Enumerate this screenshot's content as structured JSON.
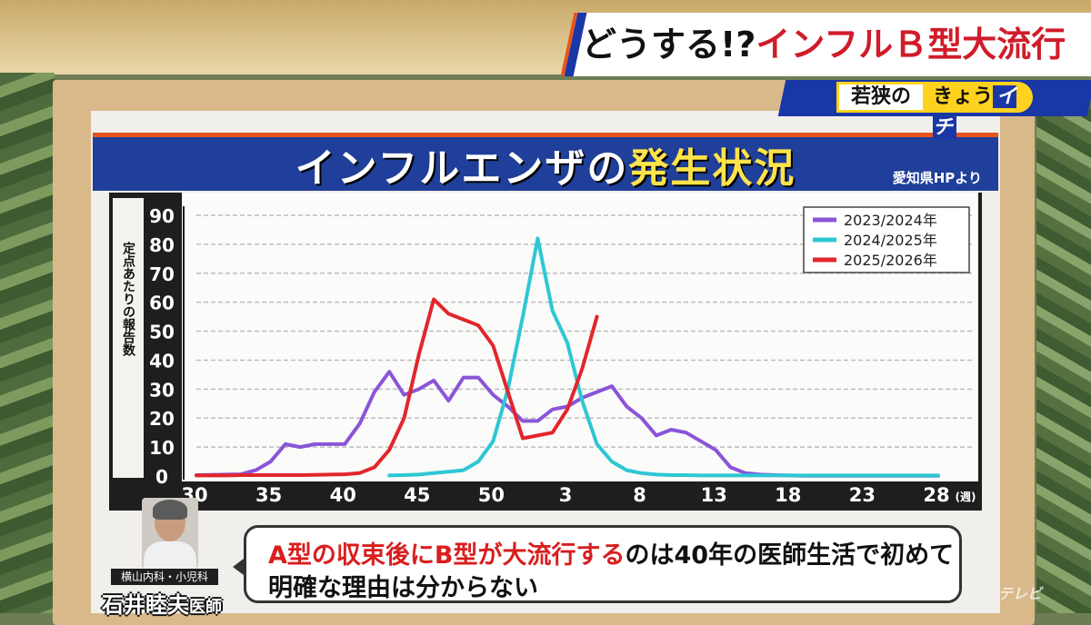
{
  "banner": {
    "title_main": "インフルエンザの",
    "title_highlight": "発生状況",
    "source": "愛知県HPより"
  },
  "topic": {
    "text_black": "どうする!?",
    "text_red": "インフルＢ型大流行"
  },
  "program": {
    "left": "若狭の",
    "right_a": "きょう",
    "right_b": "イチ"
  },
  "bubble": {
    "line1_red1": "A型の収束後に",
    "line1_red2": "B型が大流行する",
    "line1_rest": "のは40年の医師生活で初めて",
    "line2": "明確な理由は分からない"
  },
  "doctor": {
    "affiliation": "横山内科・小児科",
    "name": "石井睦夫",
    "suffix": "医師"
  },
  "watermark": "テレビ",
  "colors": {
    "s2023": "#8a55d8",
    "s2024": "#2ec7d3",
    "s2025": "#e2262b",
    "banner": "#1f3f9a",
    "accent": "#e8541c"
  },
  "chart_data": {
    "type": "line",
    "ylabel": "定点あたりの報告数",
    "xunit": "(週)",
    "ylim": [
      0,
      90
    ],
    "yticks": [
      0,
      10,
      20,
      30,
      40,
      50,
      60,
      70,
      80,
      90
    ],
    "weeks": [
      30,
      31,
      32,
      33,
      34,
      35,
      36,
      37,
      38,
      39,
      40,
      41,
      42,
      43,
      44,
      45,
      46,
      47,
      48,
      49,
      50,
      51,
      52,
      1,
      2,
      3,
      4,
      5,
      6,
      7,
      8,
      9,
      10,
      11,
      12,
      13,
      14,
      15,
      16,
      17,
      18,
      19,
      20,
      21,
      22,
      23,
      24,
      25,
      26,
      27,
      28
    ],
    "xtick_labels": [
      "30",
      "35",
      "40",
      "45",
      "50",
      "3",
      "8",
      "13",
      "18",
      "23",
      "28"
    ],
    "xtick_index": [
      0,
      5,
      10,
      15,
      20,
      25,
      30,
      35,
      40,
      45,
      50
    ],
    "legend_position": "top-right",
    "series": [
      {
        "name": "2023/2024年",
        "color": "#8a55d8",
        "values": [
          0.3,
          0.4,
          0.5,
          0.6,
          2,
          5,
          11,
          10,
          11,
          11,
          11,
          18,
          29,
          36,
          28,
          30,
          33,
          26,
          34,
          34,
          28,
          24,
          19,
          19,
          23,
          24,
          27,
          29,
          31,
          24,
          20,
          14,
          16,
          15,
          12,
          9,
          3,
          1,
          0.5,
          0.3,
          0.2,
          0.1,
          0.1,
          0.1,
          0.1,
          0.1,
          0.1,
          0.1,
          0.1,
          0.1,
          0.1
        ]
      },
      {
        "name": "2024/2025年",
        "color": "#2ec7d3",
        "values": [
          null,
          null,
          null,
          null,
          null,
          null,
          null,
          null,
          null,
          null,
          null,
          null,
          null,
          0.2,
          0.3,
          0.5,
          1,
          1.5,
          2,
          5,
          12,
          30,
          55,
          82,
          57,
          46,
          26,
          11,
          5,
          2,
          1,
          0.5,
          0.3,
          0.3,
          0.2,
          0.2,
          0.2,
          0.2,
          0.2,
          0.2,
          0.2,
          0.2,
          0.2,
          0.2,
          0.2,
          0.2,
          0.2,
          0.2,
          0.2,
          0.2,
          0.2
        ]
      },
      {
        "name": "2025/2026年",
        "color": "#e2262b",
        "values": [
          0.2,
          0.2,
          0.2,
          0.3,
          0.3,
          0.3,
          0.3,
          0.3,
          0.4,
          0.5,
          0.6,
          1,
          3,
          9,
          20,
          42,
          61,
          56,
          54,
          52,
          45,
          29,
          13,
          14,
          15,
          23,
          37,
          55
        ]
      }
    ]
  }
}
